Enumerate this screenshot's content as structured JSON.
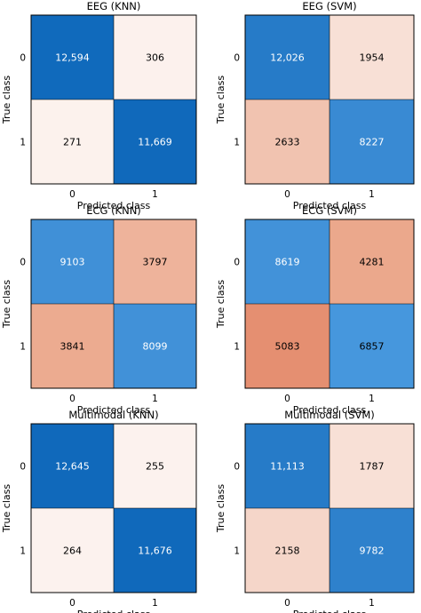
{
  "colors": {
    "high": "#0c66b9",
    "mid": "#4a9be0",
    "low_blue": "#dbeefb",
    "white": "#fdf5f2",
    "low_red": "#f7ddd2",
    "mid_red": "#eba68a",
    "high_red": "#e3896a",
    "text_dark": "#000000",
    "text_light": "#ffffff",
    "border": "#000000"
  },
  "chart_data": [
    {
      "type": "heatmap",
      "title": "EEG (KNN)",
      "xlabel": "Predicted class",
      "ylabel": "True class",
      "x_ticks": [
        "0",
        "1"
      ],
      "y_ticks": [
        "0",
        "1"
      ],
      "matrix": [
        [
          12594,
          306
        ],
        [
          271,
          11669
        ]
      ],
      "labels": [
        [
          "12,594",
          "306"
        ],
        [
          "271",
          "11,669"
        ]
      ]
    },
    {
      "type": "heatmap",
      "title": "EEG (SVM)",
      "xlabel": "Predicted class",
      "ylabel": "True class",
      "x_ticks": [
        "0",
        "1"
      ],
      "y_ticks": [
        "0",
        "1"
      ],
      "matrix": [
        [
          12026,
          1954
        ],
        [
          2633,
          8227
        ]
      ],
      "labels": [
        [
          "12,026",
          "1954"
        ],
        [
          "2633",
          "8227"
        ]
      ]
    },
    {
      "type": "heatmap",
      "title": "ECG (KNN)",
      "xlabel": "Predicted class",
      "ylabel": "True class",
      "x_ticks": [
        "0",
        "1"
      ],
      "y_ticks": [
        "0",
        "1"
      ],
      "matrix": [
        [
          9103,
          3797
        ],
        [
          3841,
          8099
        ]
      ],
      "labels": [
        [
          "9103",
          "3797"
        ],
        [
          "3841",
          "8099"
        ]
      ]
    },
    {
      "type": "heatmap",
      "title": "ECG (SVM)",
      "xlabel": "Predicted class",
      "ylabel": "True class",
      "x_ticks": [
        "0",
        "1"
      ],
      "y_ticks": [
        "0",
        "1"
      ],
      "matrix": [
        [
          8619,
          4281
        ],
        [
          5083,
          6857
        ]
      ],
      "labels": [
        [
          "8619",
          "4281"
        ],
        [
          "5083",
          "6857"
        ]
      ]
    },
    {
      "type": "heatmap",
      "title": "Multimodal (KNN)",
      "xlabel": "Predicted class",
      "ylabel": "True class",
      "x_ticks": [
        "0",
        "1"
      ],
      "y_ticks": [
        "0",
        "1"
      ],
      "matrix": [
        [
          12645,
          255
        ],
        [
          264,
          11676
        ]
      ],
      "labels": [
        [
          "12,645",
          "255"
        ],
        [
          "264",
          "11,676"
        ]
      ]
    },
    {
      "type": "heatmap",
      "title": "Multimodal (SVM)",
      "xlabel": "Predicted class",
      "ylabel": "True class",
      "x_ticks": [
        "0",
        "1"
      ],
      "y_ticks": [
        "0",
        "1"
      ],
      "matrix": [
        [
          11113,
          1787
        ],
        [
          2158,
          9782
        ]
      ],
      "labels": [
        [
          "11,113",
          "1787"
        ],
        [
          "2158",
          "9782"
        ]
      ]
    }
  ]
}
